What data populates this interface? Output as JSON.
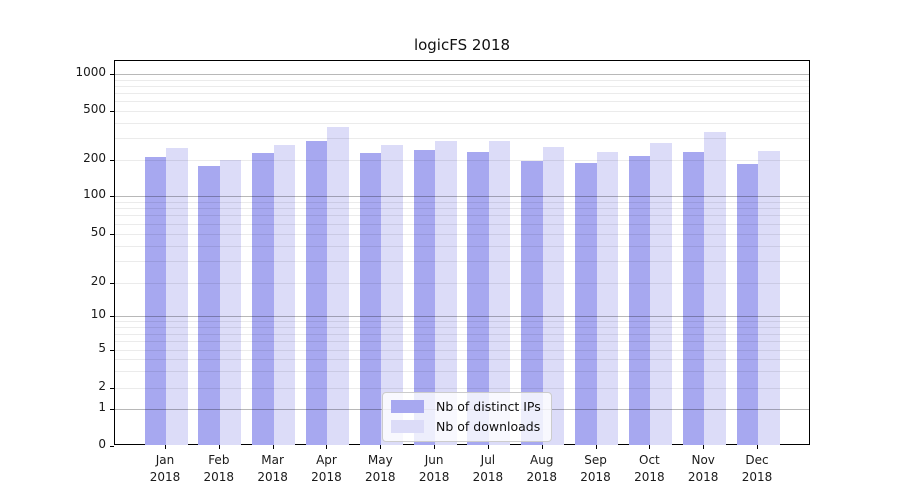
{
  "title": "logicFS 2018",
  "chart_data": {
    "type": "bar",
    "title": "logicFS 2018",
    "categories": [
      "Jan 2018",
      "Feb 2018",
      "Mar 2018",
      "Apr 2018",
      "May 2018",
      "Jun 2018",
      "Jul 2018",
      "Aug 2018",
      "Sep 2018",
      "Oct 2018",
      "Nov 2018",
      "Dec 2018"
    ],
    "series": [
      {
        "name": "Nb of distinct IPs",
        "color": "#a7a8f0",
        "values": [
          210,
          178,
          226,
          285,
          229,
          241,
          233,
          198,
          188,
          215,
          232,
          186
        ]
      },
      {
        "name": "Nb of downloads",
        "color": "#dcdcf8",
        "values": [
          252,
          199,
          266,
          368,
          266,
          284,
          287,
          253,
          233,
          276,
          340,
          237
        ]
      }
    ],
    "xlabel": "",
    "ylabel": "",
    "yscale": "symlog",
    "yticks": [
      0,
      1,
      2,
      5,
      10,
      20,
      50,
      100,
      200,
      500,
      1000
    ],
    "ylim": [
      0,
      1500
    ],
    "grid": true,
    "legend_position": "lower center"
  },
  "colors": {
    "bar_distinct_ips": "#a7a8f0",
    "bar_downloads": "#dcdcf8",
    "grid_major": "rgba(0,0,0,0.28)",
    "grid_minor": "rgba(0,0,0,0.08)",
    "spine": "#000000",
    "text": "#1a1a1a"
  }
}
